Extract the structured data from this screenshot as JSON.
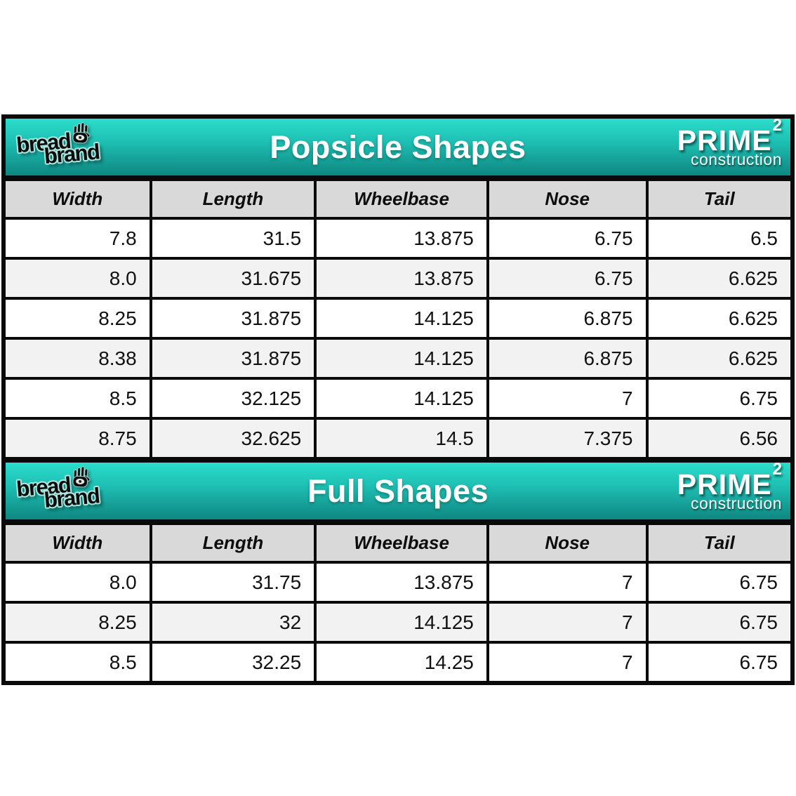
{
  "brand": {
    "word1": "bread",
    "word2": "brand",
    "hand_icon": "hand-with-eye-icon"
  },
  "prime": {
    "name": "PRIME",
    "exponent": "2",
    "subtitle": "construction"
  },
  "tables": [
    {
      "title": "Popsicle Shapes",
      "columns": [
        "Width",
        "Length",
        "Wheelbase",
        "Nose",
        "Tail"
      ],
      "rows": [
        [
          "7.8",
          "31.5",
          "13.875",
          "6.75",
          "6.5"
        ],
        [
          "8.0",
          "31.675",
          "13.875",
          "6.75",
          "6.625"
        ],
        [
          "8.25",
          "31.875",
          "14.125",
          "6.875",
          "6.625"
        ],
        [
          "8.38",
          "31.875",
          "14.125",
          "6.875",
          "6.625"
        ],
        [
          "8.5",
          "32.125",
          "14.125",
          "7",
          "6.75"
        ],
        [
          "8.75",
          "32.625",
          "14.5",
          "7.375",
          "6.56"
        ]
      ]
    },
    {
      "title": "Full Shapes",
      "columns": [
        "Width",
        "Length",
        "Wheelbase",
        "Nose",
        "Tail"
      ],
      "rows": [
        [
          "8.0",
          "31.75",
          "13.875",
          "7",
          "6.75"
        ],
        [
          "8.25",
          "32",
          "14.125",
          "7",
          "6.75"
        ],
        [
          "8.5",
          "32.25",
          "14.25",
          "7",
          "6.75"
        ]
      ]
    }
  ],
  "colors": {
    "teal_top": "#2BDECC",
    "teal_bottom": "#0E8781",
    "header_cell_bg": "#D9D9D9",
    "row_alt_bg": "#F2F2F2",
    "border": "#0A0A0A"
  }
}
